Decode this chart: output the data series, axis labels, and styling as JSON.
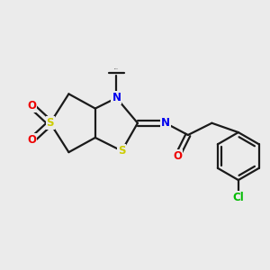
{
  "bg_color": "#ebebeb",
  "bond_color": "#1a1a1a",
  "atom_colors": {
    "S": "#cccc00",
    "N": "#0000ee",
    "O": "#ee0000",
    "Cl": "#00bb00",
    "C": "#1a1a1a"
  },
  "font_size": 8.5,
  "bond_width": 1.6,
  "dbo": 0.09,
  "xlim": [
    0,
    10
  ],
  "ylim": [
    0,
    10
  ]
}
